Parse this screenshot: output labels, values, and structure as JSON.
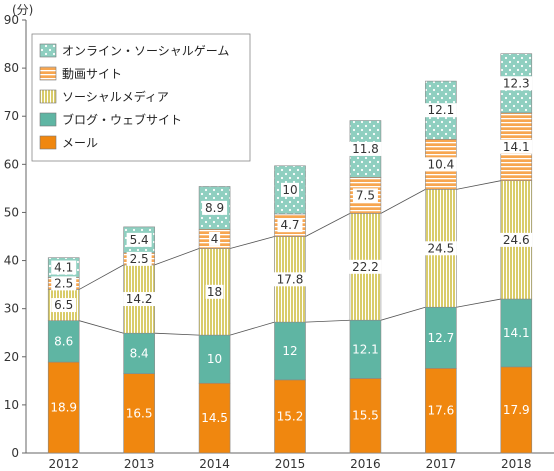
{
  "chart_data": {
    "type": "bar",
    "stacked": true,
    "unit_label": "(分)",
    "categories": [
      "2012",
      "2013",
      "2014",
      "2015",
      "2016",
      "2017",
      "2018"
    ],
    "ylim": [
      0,
      90
    ],
    "yticks": [
      0,
      10,
      20,
      30,
      40,
      50,
      60,
      70,
      80,
      90
    ],
    "grid": false,
    "legend_position": "top-left",
    "connector_lines": true,
    "series": [
      {
        "name": "メール",
        "values": [
          18.9,
          16.5,
          14.5,
          15.2,
          15.5,
          17.6,
          17.9
        ],
        "color": "#f0870f",
        "pattern": "solid"
      },
      {
        "name": "ブログ・ウェブサイト",
        "values": [
          8.6,
          8.4,
          10,
          12,
          12.1,
          12.7,
          14.1
        ],
        "color": "#5fb5a3",
        "pattern": "solid"
      },
      {
        "name": "ソーシャルメディア",
        "values": [
          6.5,
          14.2,
          18,
          17.8,
          22.2,
          24.5,
          24.6
        ],
        "color": "#d9cc6a",
        "pattern": "vertical-stripes"
      },
      {
        "name": "動画サイト",
        "values": [
          2.5,
          2.5,
          4,
          4.7,
          7.5,
          10.4,
          14.1
        ],
        "color": "#f7a650",
        "pattern": "horizontal-stripes"
      },
      {
        "name": "オンライン・ソーシャルゲーム",
        "values": [
          4.1,
          5.4,
          8.9,
          10,
          11.8,
          12.1,
          12.3
        ],
        "color": "#8fcfc0",
        "pattern": "dots"
      }
    ],
    "legend_order": [
      "オンライン・ソーシャルゲーム",
      "動画サイト",
      "ソーシャルメディア",
      "ブログ・ウェブサイト",
      "メール"
    ]
  }
}
